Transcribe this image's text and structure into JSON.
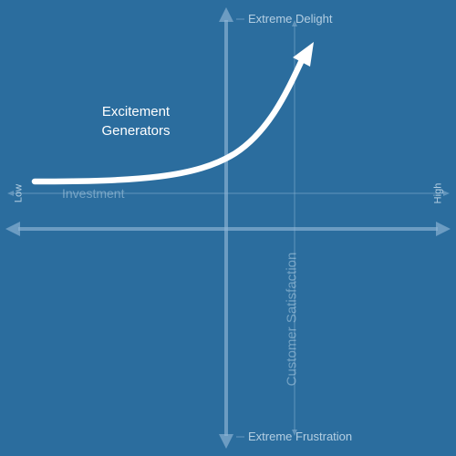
{
  "diagram": {
    "title_line1": "Excitement",
    "title_line2": "Generators",
    "x_axis": {
      "label": "Investment",
      "low_label": "Low",
      "high_label": "High"
    },
    "y_axis": {
      "label": "Customer Satisfaction",
      "top_label": "Extreme Delight",
      "bottom_label": "Extreme Frustration"
    },
    "colors": {
      "background": "#2b6d9e",
      "axis": "#8fb6d6",
      "curve": "#ffffff",
      "text": "#ffffff"
    }
  }
}
